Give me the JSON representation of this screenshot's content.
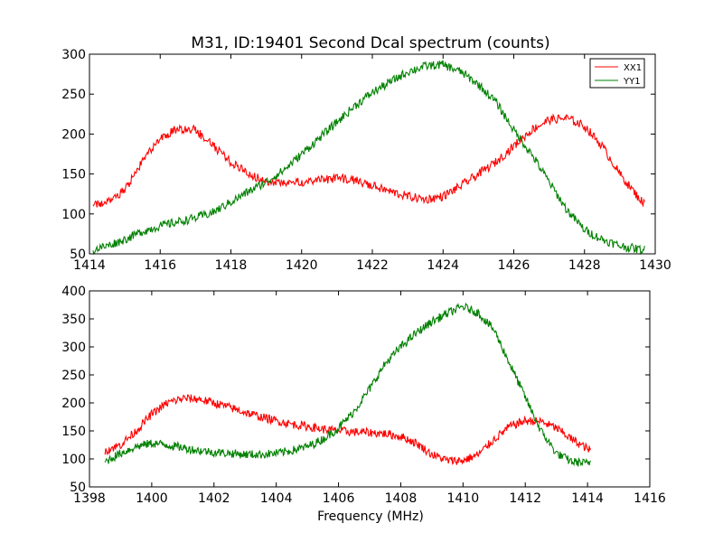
{
  "chart_data": [
    {
      "type": "line",
      "title": "M31, ID:19401 Second Dcal spectrum (counts)",
      "xlabel": "",
      "ylabel": "",
      "xlim": [
        1414,
        1430
      ],
      "ylim": [
        50,
        300
      ],
      "xticks": [
        "1414",
        "1416",
        "1418",
        "1420",
        "1422",
        "1424",
        "1426",
        "1428",
        "1430"
      ],
      "yticks": [
        "50",
        "100",
        "150",
        "200",
        "250",
        "300"
      ],
      "legend": "top-right",
      "grid": false,
      "series": [
        {
          "name": "XX1",
          "color": "#ff0000",
          "x": [
            1414.1,
            1414.5,
            1415.0,
            1415.5,
            1416.0,
            1416.5,
            1417.0,
            1417.5,
            1418.0,
            1418.5,
            1419.0,
            1419.5,
            1420.0,
            1420.5,
            1421.0,
            1421.5,
            1422.0,
            1422.5,
            1423.0,
            1423.5,
            1424.0,
            1424.5,
            1425.0,
            1425.5,
            1426.0,
            1426.5,
            1427.0,
            1427.5,
            1428.0,
            1428.5,
            1429.0,
            1429.5,
            1429.7
          ],
          "values": [
            110,
            115,
            130,
            165,
            195,
            207,
            205,
            185,
            165,
            150,
            140,
            138,
            140,
            142,
            145,
            142,
            135,
            128,
            122,
            118,
            122,
            135,
            150,
            165,
            185,
            205,
            218,
            220,
            210,
            185,
            150,
            122,
            112
          ]
        },
        {
          "name": "YY1",
          "color": "#008000",
          "x": [
            1414.1,
            1414.5,
            1415.0,
            1415.5,
            1416.0,
            1416.5,
            1417.0,
            1417.5,
            1418.0,
            1418.5,
            1419.0,
            1419.5,
            1420.0,
            1420.5,
            1421.0,
            1421.5,
            1422.0,
            1422.5,
            1423.0,
            1423.5,
            1424.0,
            1424.5,
            1425.0,
            1425.5,
            1426.0,
            1426.5,
            1427.0,
            1427.5,
            1428.0,
            1428.5,
            1429.0,
            1429.5,
            1429.7
          ],
          "values": [
            55,
            60,
            68,
            78,
            85,
            90,
            95,
            102,
            115,
            128,
            140,
            155,
            175,
            195,
            215,
            235,
            252,
            265,
            278,
            285,
            287,
            278,
            262,
            240,
            205,
            175,
            140,
            105,
            80,
            68,
            60,
            56,
            55
          ]
        }
      ]
    },
    {
      "type": "line",
      "title": "",
      "xlabel": "Frequency (MHz)",
      "ylabel": "",
      "xlim": [
        1398,
        1416
      ],
      "ylim": [
        50,
        400
      ],
      "xticks": [
        "1398",
        "1400",
        "1402",
        "1404",
        "1406",
        "1408",
        "1410",
        "1412",
        "1414",
        "1416"
      ],
      "yticks": [
        "50",
        "100",
        "150",
        "200",
        "250",
        "300",
        "350",
        "400"
      ],
      "grid": false,
      "series": [
        {
          "name": "XX1",
          "color": "#ff0000",
          "x": [
            1398.5,
            1399.0,
            1399.5,
            1400.0,
            1400.5,
            1401.0,
            1401.5,
            1402.0,
            1402.5,
            1403.0,
            1403.5,
            1404.0,
            1404.5,
            1405.0,
            1405.5,
            1406.0,
            1406.5,
            1407.0,
            1407.5,
            1408.0,
            1408.5,
            1409.0,
            1409.5,
            1410.0,
            1410.5,
            1411.0,
            1411.5,
            1412.0,
            1412.5,
            1413.0,
            1413.5,
            1414.0,
            1414.1
          ],
          "values": [
            115,
            125,
            150,
            180,
            200,
            208,
            207,
            200,
            192,
            183,
            175,
            168,
            162,
            158,
            153,
            150,
            148,
            147,
            145,
            140,
            128,
            108,
            97,
            97,
            108,
            135,
            158,
            168,
            167,
            155,
            135,
            118,
            115
          ]
        },
        {
          "name": "YY1",
          "color": "#008000",
          "x": [
            1398.5,
            1399.0,
            1399.5,
            1400.0,
            1400.5,
            1401.0,
            1401.5,
            1402.0,
            1402.5,
            1403.0,
            1403.5,
            1404.0,
            1404.5,
            1405.0,
            1405.5,
            1406.0,
            1406.5,
            1407.0,
            1407.5,
            1408.0,
            1408.5,
            1409.0,
            1409.5,
            1410.0,
            1410.5,
            1411.0,
            1411.5,
            1412.0,
            1412.5,
            1413.0,
            1413.5,
            1414.0,
            1414.1
          ],
          "values": [
            95,
            110,
            122,
            128,
            125,
            120,
            115,
            112,
            110,
            108,
            108,
            110,
            115,
            122,
            135,
            155,
            185,
            225,
            270,
            300,
            325,
            345,
            360,
            372,
            360,
            330,
            270,
            210,
            150,
            110,
            95,
            92,
            95
          ]
        }
      ]
    }
  ]
}
